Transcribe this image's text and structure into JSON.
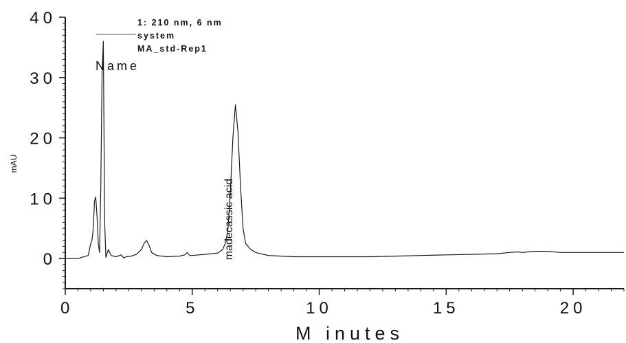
{
  "chart_data": {
    "type": "line",
    "ylabel": "mAU",
    "xlabel": "M inutes",
    "xlim": [
      0,
      22
    ],
    "ylim": [
      -5,
      40
    ],
    "x_ticks": [
      0,
      5,
      10,
      15,
      20
    ],
    "x_tick_labels": [
      "0",
      "5",
      "10",
      "15",
      "20"
    ],
    "y_ticks": [
      0,
      10,
      20,
      30,
      40
    ],
    "y_tick_labels": [
      "0",
      "10",
      "20",
      "30",
      "40"
    ],
    "legend": {
      "position": "top-left",
      "lines": [
        "1: 210 nm, 6 nm",
        "system",
        "MA_std-Rep1"
      ]
    },
    "column_header": "Name",
    "series": [
      {
        "x": [
          0.0,
          0.5,
          0.9,
          1.0,
          1.05,
          1.1,
          1.15,
          1.2,
          1.25,
          1.3,
          1.35,
          1.4,
          1.45,
          1.5,
          1.55,
          1.6,
          1.7,
          1.8,
          2.0,
          2.2,
          2.3,
          2.4,
          2.6,
          2.8,
          3.0,
          3.1,
          3.2,
          3.3,
          3.4,
          3.6,
          4.0,
          4.5,
          4.7,
          4.8,
          4.9,
          5.0,
          5.5,
          6.0,
          6.2,
          6.3,
          6.4,
          6.5,
          6.6,
          6.7,
          6.8,
          6.9,
          7.0,
          7.1,
          7.3,
          7.5,
          7.8,
          8.0,
          8.5,
          9.0,
          10.0,
          11.0,
          12.0,
          13.0,
          14.0,
          15.0,
          16.0,
          17.0,
          17.5,
          17.8,
          18.0,
          18.5,
          19.0,
          19.5,
          20.0,
          21.0,
          22.0
        ],
        "y": [
          0.0,
          0.0,
          0.5,
          2.5,
          3.0,
          5.0,
          9.5,
          10.2,
          7.0,
          2.5,
          1.0,
          12.0,
          31.0,
          36.0,
          6.0,
          0.2,
          1.5,
          0.5,
          0.3,
          0.6,
          0.1,
          0.3,
          0.4,
          0.7,
          1.5,
          2.5,
          3.0,
          2.2,
          1.0,
          0.5,
          0.3,
          0.4,
          0.6,
          1.0,
          0.5,
          0.5,
          0.7,
          0.9,
          1.5,
          2.5,
          4.5,
          11.0,
          20.0,
          25.5,
          21.0,
          12.0,
          5.0,
          2.5,
          1.5,
          1.0,
          0.7,
          0.5,
          0.4,
          0.3,
          0.3,
          0.3,
          0.3,
          0.4,
          0.5,
          0.6,
          0.7,
          0.8,
          1.0,
          1.1,
          1.0,
          1.2,
          1.2,
          1.0,
          1.0,
          1.0,
          1.0
        ]
      }
    ],
    "peak_labels": [
      {
        "text": "madecassic acid",
        "x": 6.9,
        "y": 2.5
      }
    ],
    "grid": false,
    "colors": {
      "line": "#1a1a1a",
      "axis": "#1a1a1a",
      "background": "#ffffff"
    }
  }
}
